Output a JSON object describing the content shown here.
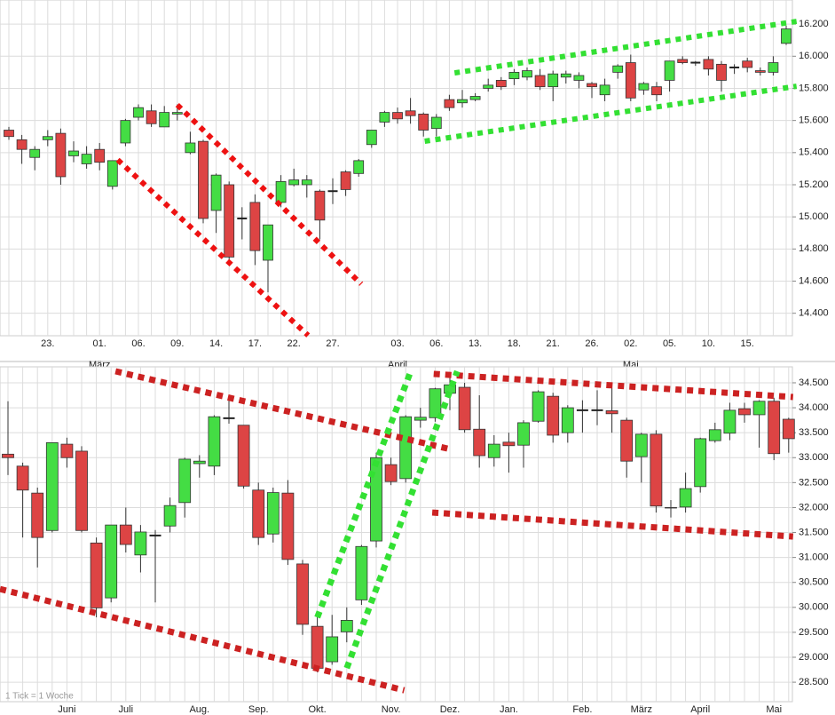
{
  "chart_data": [
    {
      "type": "candlestick",
      "categories": [
        null,
        null,
        null,
        "23.",
        null,
        null,
        null,
        "01.",
        null,
        null,
        "06.",
        null,
        null,
        "09.",
        null,
        null,
        "14.",
        null,
        null,
        "17.",
        null,
        null,
        "22.",
        null,
        null,
        "27.",
        null,
        null,
        null,
        null,
        "03.",
        null,
        null,
        "06.",
        null,
        null,
        "13.",
        null,
        null,
        "18.",
        null,
        null,
        "21.",
        null,
        null,
        "26.",
        null,
        null,
        "02.",
        null,
        null,
        "05.",
        null,
        null,
        "10.",
        null,
        null,
        "15.",
        null,
        null,
        null
      ],
      "month_labels": [
        {
          "label": "März",
          "index": 7
        },
        {
          "label": "April",
          "index": 30
        },
        {
          "label": "Mai",
          "index": 48
        }
      ],
      "ohlc": [
        [
          15540,
          15560,
          15480,
          15500
        ],
        [
          15480,
          15510,
          15330,
          15420
        ],
        [
          15370,
          15440,
          15290,
          15420
        ],
        [
          15480,
          15540,
          15440,
          15500
        ],
        [
          15520,
          15550,
          15200,
          15250
        ],
        [
          15380,
          15470,
          15340,
          15410
        ],
        [
          15330,
          15440,
          15300,
          15390
        ],
        [
          15420,
          15460,
          15290,
          15340
        ],
        [
          15190,
          15350,
          15170,
          15350
        ],
        [
          15460,
          15610,
          15440,
          15600
        ],
        [
          15620,
          15700,
          15600,
          15680
        ],
        [
          15660,
          15700,
          15560,
          15580
        ],
        [
          15560,
          15690,
          15560,
          15650
        ],
        [
          15640,
          15700,
          15600,
          15650
        ],
        [
          15400,
          15530,
          15390,
          15460
        ],
        [
          15470,
          15480,
          14960,
          14990
        ],
        [
          15040,
          15270,
          14900,
          15260
        ],
        [
          15200,
          15220,
          14730,
          14750
        ],
        [
          14990,
          15060,
          14860,
          14990
        ],
        [
          15090,
          15140,
          14700,
          14790
        ],
        [
          14730,
          14950,
          14530,
          14950
        ],
        [
          15090,
          15260,
          15060,
          15220
        ],
        [
          15200,
          15300,
          15190,
          15230
        ],
        [
          15200,
          15260,
          15120,
          15230
        ],
        [
          15160,
          15170,
          14860,
          14980
        ],
        [
          15160,
          15240,
          15080,
          15160
        ],
        [
          15280,
          15290,
          15130,
          15170
        ],
        [
          15270,
          15360,
          15250,
          15350
        ],
        [
          15450,
          15540,
          15430,
          15540
        ],
        [
          15590,
          15660,
          15560,
          15650
        ],
        [
          15650,
          15680,
          15580,
          15610
        ],
        [
          15660,
          15740,
          15580,
          15630
        ],
        [
          15640,
          15650,
          15500,
          15540
        ],
        [
          15550,
          15640,
          15500,
          15620
        ],
        [
          15730,
          15760,
          15660,
          15680
        ],
        [
          15710,
          15790,
          15680,
          15730
        ],
        [
          15730,
          15770,
          15720,
          15750
        ],
        [
          15800,
          15860,
          15780,
          15820
        ],
        [
          15850,
          15870,
          15790,
          15810
        ],
        [
          15860,
          15920,
          15820,
          15900
        ],
        [
          15870,
          15930,
          15850,
          15910
        ],
        [
          15880,
          15920,
          15790,
          15810
        ],
        [
          15810,
          15910,
          15720,
          15890
        ],
        [
          15870,
          15910,
          15830,
          15890
        ],
        [
          15850,
          15900,
          15800,
          15880
        ],
        [
          15830,
          15840,
          15740,
          15810
        ],
        [
          15760,
          15860,
          15720,
          15820
        ],
        [
          15900,
          15950,
          15860,
          15940
        ],
        [
          15960,
          16010,
          15720,
          15740
        ],
        [
          15790,
          15840,
          15760,
          15830
        ],
        [
          15810,
          15840,
          15720,
          15760
        ],
        [
          15850,
          15970,
          15780,
          15970
        ],
        [
          15980,
          16000,
          15950,
          15960
        ],
        [
          15960,
          15970,
          15940,
          15960
        ],
        [
          15980,
          16000,
          15880,
          15920
        ],
        [
          15950,
          15970,
          15780,
          15850
        ],
        [
          15930,
          15950,
          15890,
          15930
        ],
        [
          15970,
          15990,
          15900,
          15930
        ],
        [
          15910,
          15930,
          15880,
          15900
        ],
        [
          15900,
          16000,
          15880,
          15960
        ],
        [
          16080,
          16190,
          16070,
          16170
        ]
      ],
      "up_color": "#44dd44",
      "down_color": "#dd4444",
      "ylim": [
        14260,
        16350
      ],
      "yticks": [
        {
          "value": 14400,
          "label": "14.400"
        },
        {
          "value": 14600,
          "label": "14.600"
        },
        {
          "value": 14800,
          "label": "14.800"
        },
        {
          "value": 15000,
          "label": "15.000"
        },
        {
          "value": 15200,
          "label": "15.200"
        },
        {
          "value": 15400,
          "label": "15.400"
        },
        {
          "value": 15600,
          "label": "15.600"
        },
        {
          "value": 15800,
          "label": "15.800"
        },
        {
          "value": 16000,
          "label": "16.000"
        },
        {
          "value": 16200,
          "label": "16.200"
        }
      ],
      "grid": true,
      "trend_lines": [
        {
          "color": "#ee1111",
          "points": [
            [
              8.4,
              15355
            ],
            [
              23.1,
              14262
            ]
          ]
        },
        {
          "color": "#ee1111",
          "points": [
            [
              13.0,
              15697
            ],
            [
              27.2,
              14582
            ]
          ]
        },
        {
          "color": "#33e033",
          "points": [
            [
              34.4,
              15896
            ],
            [
              60.8,
              16217
            ]
          ]
        },
        {
          "color": "#33e033",
          "points": [
            [
              32.1,
              15471
            ],
            [
              60.8,
              15813
            ]
          ]
        }
      ]
    },
    {
      "type": "candlestick",
      "categories": [
        null,
        null,
        null,
        null,
        "Juni",
        null,
        null,
        null,
        "Juli",
        null,
        null,
        null,
        null,
        "Aug.",
        null,
        null,
        null,
        "Sep.",
        null,
        null,
        null,
        "Okt.",
        null,
        null,
        null,
        null,
        "Nov.",
        null,
        null,
        null,
        "Dez.",
        null,
        null,
        null,
        "Jan.",
        null,
        null,
        null,
        null,
        "Feb.",
        null,
        null,
        null,
        "März",
        null,
        null,
        null,
        "April",
        null,
        null,
        null,
        null,
        "Mai",
        null
      ],
      "ohlc": [
        [
          33070,
          34130,
          32650,
          33000
        ],
        [
          32830,
          32900,
          31400,
          32350
        ],
        [
          32290,
          32400,
          30800,
          31400
        ],
        [
          31540,
          33300,
          31500,
          33300
        ],
        [
          33270,
          33400,
          32800,
          33000
        ],
        [
          33130,
          33230,
          31500,
          31540
        ],
        [
          31290,
          31400,
          29800,
          29990
        ],
        [
          30190,
          31650,
          30100,
          31650
        ],
        [
          31650,
          32000,
          31100,
          31260
        ],
        [
          31050,
          31650,
          30700,
          31510
        ],
        [
          31440,
          31550,
          30100,
          31440
        ],
        [
          31630,
          32200,
          31500,
          32040
        ],
        [
          32100,
          33000,
          31800,
          32970
        ],
        [
          32880,
          33050,
          32600,
          32930
        ],
        [
          32830,
          33850,
          32650,
          33820
        ],
        [
          33790,
          34250,
          33680,
          33790
        ],
        [
          33650,
          33650,
          32380,
          32430
        ],
        [
          32350,
          32500,
          31250,
          31400
        ],
        [
          31470,
          32400,
          31300,
          32300
        ],
        [
          32290,
          32550,
          30850,
          30960
        ],
        [
          30870,
          30950,
          29450,
          29660
        ],
        [
          29620,
          29800,
          28700,
          28780
        ],
        [
          28910,
          29850,
          28850,
          29410
        ],
        [
          29510,
          30000,
          29300,
          29740
        ],
        [
          30150,
          31250,
          30050,
          31220
        ],
        [
          31330,
          33100,
          31200,
          33000
        ],
        [
          32860,
          33000,
          32450,
          32520
        ],
        [
          32580,
          33850,
          32500,
          33820
        ],
        [
          33750,
          34000,
          33600,
          33810
        ],
        [
          33800,
          34400,
          33720,
          34380
        ],
        [
          34290,
          34700,
          33950,
          34460
        ],
        [
          34410,
          34500,
          33500,
          33560
        ],
        [
          33570,
          34250,
          32800,
          33040
        ],
        [
          33000,
          33450,
          32820,
          33270
        ],
        [
          33310,
          33500,
          32700,
          33240
        ],
        [
          33250,
          33750,
          32800,
          33700
        ],
        [
          33730,
          34350,
          33700,
          34320
        ],
        [
          34230,
          34300,
          33300,
          33450
        ],
        [
          33500,
          34050,
          33300,
          34000
        ],
        [
          33950,
          34150,
          33500,
          33950
        ],
        [
          33950,
          34350,
          33650,
          33950
        ],
        [
          33940,
          34400,
          33500,
          33880
        ],
        [
          33750,
          33800,
          32600,
          32930
        ],
        [
          33020,
          33500,
          32500,
          33470
        ],
        [
          33470,
          33550,
          31900,
          32030
        ],
        [
          32000,
          32150,
          31800,
          31990
        ],
        [
          32010,
          32700,
          31900,
          32380
        ],
        [
          32420,
          33400,
          32300,
          33380
        ],
        [
          33340,
          33700,
          33300,
          33560
        ],
        [
          33490,
          34100,
          33350,
          33950
        ],
        [
          33980,
          34100,
          33700,
          33860
        ],
        [
          33860,
          34150,
          33200,
          34130
        ],
        [
          34130,
          34200,
          32950,
          33080
        ],
        [
          33770,
          33800,
          33100,
          33380
        ]
      ],
      "up_color": "#44dd44",
      "down_color": "#dd4444",
      "ylim": [
        28110,
        34820
      ],
      "yticks": [
        {
          "value": 28500,
          "label": "28.500"
        },
        {
          "value": 29000,
          "label": "29.000"
        },
        {
          "value": 29500,
          "label": "29.500"
        },
        {
          "value": 30000,
          "label": "30.000"
        },
        {
          "value": 30500,
          "label": "30.500"
        },
        {
          "value": 31000,
          "label": "31.000"
        },
        {
          "value": 31500,
          "label": "31.500"
        },
        {
          "value": 32000,
          "label": "32.000"
        },
        {
          "value": 32500,
          "label": "32.500"
        },
        {
          "value": 33000,
          "label": "33.000"
        },
        {
          "value": 33500,
          "label": "33.500"
        },
        {
          "value": 34000,
          "label": "34.000"
        },
        {
          "value": 34500,
          "label": "34.500"
        }
      ],
      "grid": true,
      "note": "1 Tick = 1 Woche",
      "trend_lines": [
        {
          "color": "#cc2222",
          "points": [
            [
              7.3,
              34731
            ],
            [
              30.1,
              33164
            ]
          ]
        },
        {
          "color": "#cc2222",
          "points": [
            [
              -0.54,
              30368
            ],
            [
              26.9,
              28338
            ]
          ]
        },
        {
          "color": "#cc2222",
          "points": [
            [
              28.9,
              34678
            ],
            [
              53.3,
              34215
            ]
          ]
        },
        {
          "color": "#cc2222",
          "points": [
            [
              28.8,
              31900
            ],
            [
              53.3,
              31419
            ]
          ]
        },
        {
          "color": "#33e033",
          "points": [
            [
              21.0,
              29798
            ],
            [
              27.3,
              34696
            ]
          ]
        },
        {
          "color": "#33e033",
          "points": [
            [
              23.0,
              28783
            ],
            [
              30.5,
              34731
            ]
          ]
        }
      ]
    }
  ]
}
